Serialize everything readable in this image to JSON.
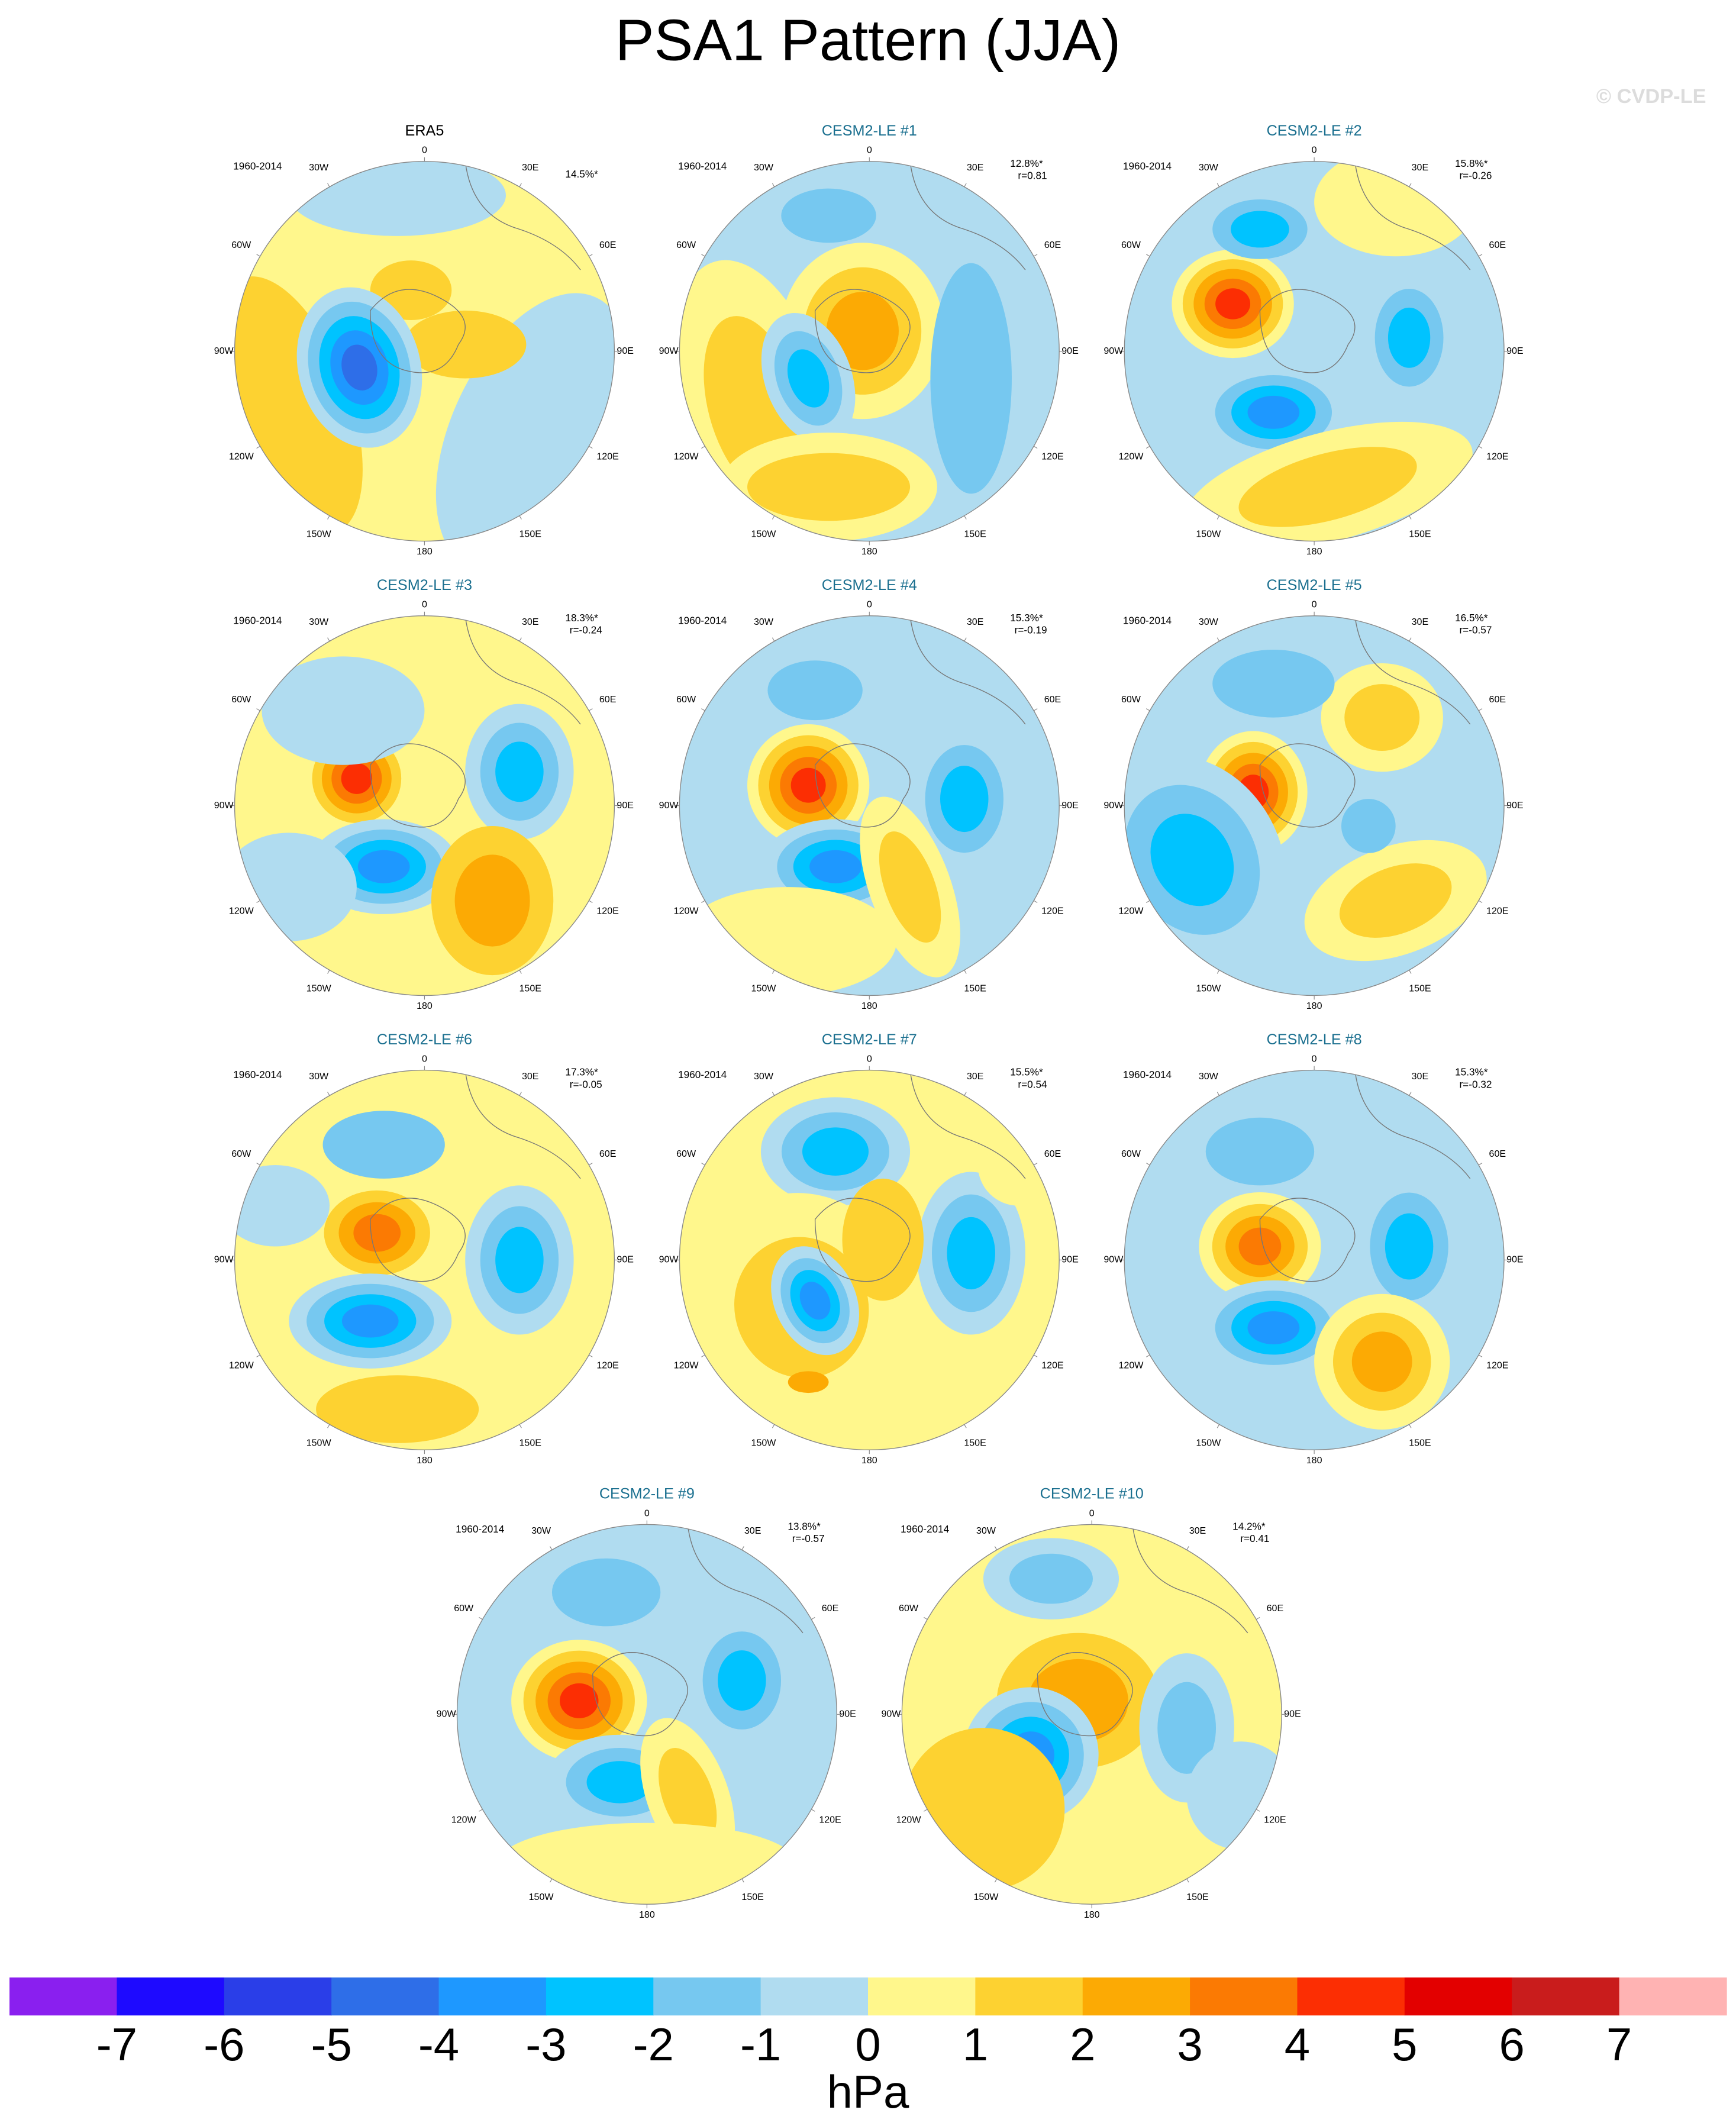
{
  "header": {
    "title": "PSA1 Pattern (JJA)",
    "credit": "© CVDP-LE"
  },
  "lon_labels": [
    "0",
    "30E",
    "60E",
    "90E",
    "120E",
    "150E",
    "180",
    "150W",
    "120W",
    "90W",
    "60W",
    "30W"
  ],
  "panels": [
    {
      "title": "ERA5",
      "period": "1960-2014",
      "pct": "14.5%*"
    },
    {
      "title": "CESM2-LE #1",
      "period": "1960-2014",
      "pct": "12.8%*",
      "r": "r=0.81"
    },
    {
      "title": "CESM2-LE #2",
      "period": "1960-2014",
      "pct": "15.8%*",
      "r": "r=-0.26"
    },
    {
      "title": "CESM2-LE #3",
      "period": "1960-2014",
      "pct": "18.3%*",
      "r": "r=-0.24"
    },
    {
      "title": "CESM2-LE #4",
      "period": "1960-2014",
      "pct": "15.3%*",
      "r": "r=-0.19"
    },
    {
      "title": "CESM2-LE #5",
      "period": "1960-2014",
      "pct": "16.5%*",
      "r": "r=-0.57"
    },
    {
      "title": "CESM2-LE #6",
      "period": "1960-2014",
      "pct": "17.3%*",
      "r": "r=-0.05"
    },
    {
      "title": "CESM2-LE #7",
      "period": "1960-2014",
      "pct": "15.5%*",
      "r": "r=0.54"
    },
    {
      "title": "CESM2-LE #8",
      "period": "1960-2014",
      "pct": "15.3%*",
      "r": "r=-0.32"
    },
    {
      "title": "CESM2-LE #9",
      "period": "1960-2014",
      "pct": "13.8%*",
      "r": "r=-0.57"
    },
    {
      "title": "CESM2-LE #10",
      "period": "1960-2014",
      "pct": "14.2%*",
      "r": "r=0.41"
    }
  ],
  "colorbar": {
    "colors": [
      "#8a1fef",
      "#1e0aff",
      "#2a3ee8",
      "#2e6ee8",
      "#1e98ff",
      "#00c3ff",
      "#76c8f0",
      "#b0dcf0",
      "#fff78c",
      "#fdd231",
      "#fcaa04",
      "#fb7a03",
      "#fc2e03",
      "#e30000",
      "#c91c1c",
      "#ffb3b3"
    ],
    "ticks": [
      -7,
      -6,
      -5,
      -4,
      -3,
      -2,
      -1,
      0,
      1,
      2,
      3,
      4,
      5,
      6,
      7
    ],
    "unit": "hPa"
  }
}
